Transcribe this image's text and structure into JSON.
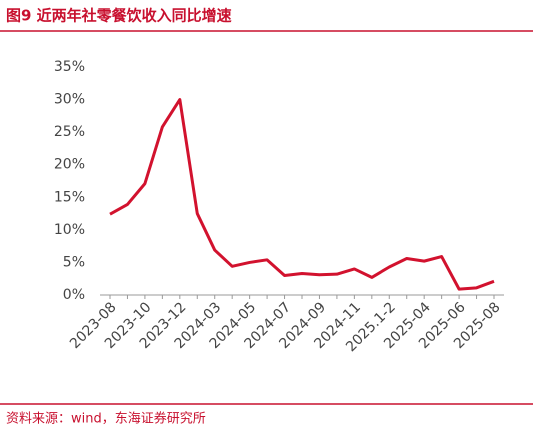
{
  "chart_data": {
    "type": "line",
    "title": "图9  近两年社零餐饮收入同比增速",
    "source": "资料来源：wind，东海证券研究所",
    "categories": [
      "2023-08",
      null,
      "2023-10",
      null,
      "2023-12",
      null,
      "2024-03",
      null,
      "2024-05",
      null,
      "2024-07",
      null,
      "2024-09",
      null,
      "2024-11",
      null,
      "2025.1-2",
      null,
      "2025-04",
      null,
      "2025-06",
      null,
      "2025-08"
    ],
    "series": [
      {
        "name": "社零餐饮收入同比增速",
        "color": "#d2122e",
        "values": [
          12.4,
          13.9,
          17.1,
          25.8,
          30.0,
          12.5,
          6.9,
          4.4,
          5.0,
          5.4,
          3.0,
          3.3,
          3.1,
          3.2,
          4.0,
          2.7,
          4.3,
          5.6,
          5.2,
          5.9,
          0.9,
          1.1,
          2.1
        ]
      }
    ],
    "ylim": [
      0,
      35
    ],
    "yticks": [
      {
        "value": 0,
        "label": "0%"
      },
      {
        "value": 5,
        "label": "5%"
      },
      {
        "value": 10,
        "label": "10%"
      },
      {
        "value": 15,
        "label": "15%"
      },
      {
        "value": 20,
        "label": "20%"
      },
      {
        "value": 25,
        "label": "25%"
      },
      {
        "value": 30,
        "label": "30%"
      },
      {
        "value": 35,
        "label": "35%"
      }
    ],
    "grid": false
  }
}
